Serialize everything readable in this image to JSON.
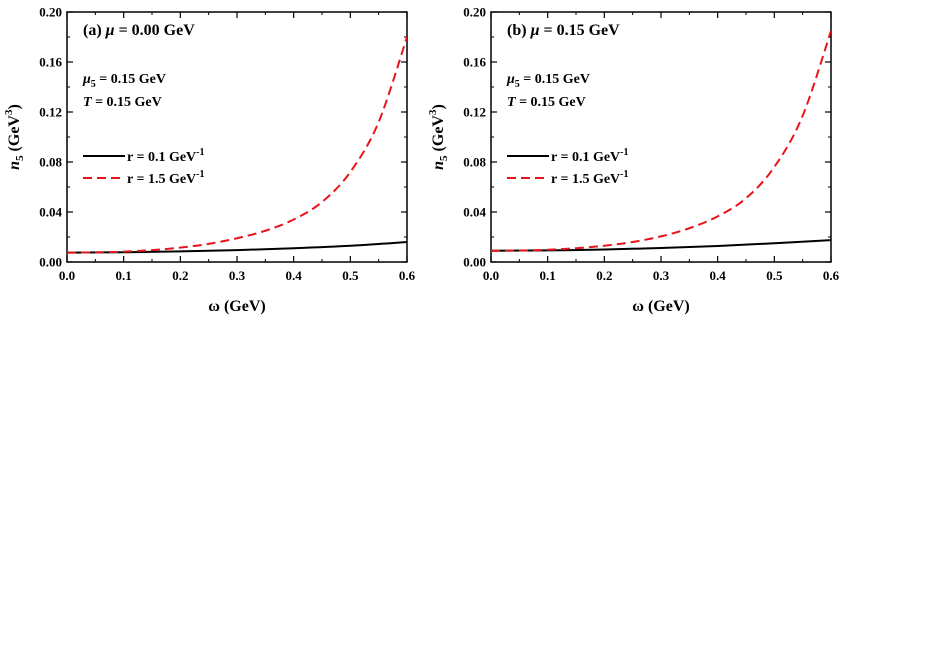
{
  "chart_data": [
    {
      "type": "line",
      "panel": "a",
      "title": "(a) μ = 0.00 GeV",
      "title_prefix": "(a) ",
      "title_mu": "μ",
      "title_value": " = 0.00 GeV",
      "params": [
        {
          "sym": "μ",
          "sub": "5",
          "text": " = 0.15 GeV"
        },
        {
          "sym": "T",
          "sub": "",
          "text": " = 0.15 GeV"
        }
      ],
      "xlabel": "ω  (GeV)",
      "ylabel_sym": "n",
      "ylabel_sub": "5",
      "ylabel_unit": "  (GeV",
      "ylabel_sup": "3",
      "ylabel_close": ")",
      "xlim": [
        0.0,
        0.6
      ],
      "ylim": [
        0.0,
        0.2
      ],
      "xticks": [
        "0.0",
        "0.1",
        "0.2",
        "0.3",
        "0.4",
        "0.5",
        "0.6"
      ],
      "yticks": [
        "0.00",
        "0.04",
        "0.08",
        "0.12",
        "0.16",
        "0.20"
      ],
      "legend_position": "left",
      "series": [
        {
          "name_main": "r = 0.1 GeV",
          "name_sup": "-1",
          "color": "#000000",
          "dash": "solid",
          "x": [
            0.0,
            0.1,
            0.2,
            0.3,
            0.4,
            0.5,
            0.6
          ],
          "y": [
            0.0075,
            0.0078,
            0.0085,
            0.0095,
            0.011,
            0.013,
            0.016
          ]
        },
        {
          "name_main": "r = 1.5 GeV",
          "name_sup": "-1",
          "color": "#e8141b",
          "dash": "dashed",
          "x": [
            0.0,
            0.05,
            0.1,
            0.15,
            0.2,
            0.25,
            0.3,
            0.35,
            0.4,
            0.45,
            0.5,
            0.55,
            0.6
          ],
          "y": [
            0.0075,
            0.0077,
            0.0083,
            0.0095,
            0.0115,
            0.0145,
            0.019,
            0.025,
            0.034,
            0.048,
            0.072,
            0.112,
            0.18
          ]
        }
      ]
    },
    {
      "type": "line",
      "panel": "b",
      "title": "(b) μ = 0.15 GeV",
      "title_prefix": "(b) ",
      "title_mu": "μ",
      "title_value": " = 0.15 GeV",
      "params": [
        {
          "sym": "μ",
          "sub": "5",
          "text": " = 0.15 GeV"
        },
        {
          "sym": "T",
          "sub": "",
          "text": " = 0.15 GeV"
        }
      ],
      "xlabel": "ω  (GeV)",
      "ylabel_sym": "n",
      "ylabel_sub": "5",
      "ylabel_unit": "  (GeV",
      "ylabel_sup": "3",
      "ylabel_close": ")",
      "xlim": [
        0.0,
        0.6
      ],
      "ylim": [
        0.0,
        0.2
      ],
      "xticks": [
        "0.0",
        "0.1",
        "0.2",
        "0.3",
        "0.4",
        "0.5",
        "0.6"
      ],
      "yticks": [
        "0.00",
        "0.04",
        "0.08",
        "0.12",
        "0.16",
        "0.20"
      ],
      "legend_position": "left",
      "series": [
        {
          "name_main": "r = 0.1 GeV",
          "name_sup": "-1",
          "color": "#000000",
          "dash": "solid",
          "x": [
            0.0,
            0.1,
            0.2,
            0.3,
            0.4,
            0.5,
            0.6
          ],
          "y": [
            0.009,
            0.0093,
            0.01,
            0.0112,
            0.0128,
            0.015,
            0.0175
          ]
        },
        {
          "name_main": "r = 1.5 GeV",
          "name_sup": "-1",
          "color": "#e8141b",
          "dash": "dashed",
          "x": [
            0.0,
            0.05,
            0.1,
            0.15,
            0.2,
            0.25,
            0.3,
            0.35,
            0.4,
            0.45,
            0.5,
            0.55,
            0.6
          ],
          "y": [
            0.009,
            0.0092,
            0.0098,
            0.011,
            0.013,
            0.016,
            0.0205,
            0.027,
            0.0365,
            0.051,
            0.076,
            0.117,
            0.185
          ]
        }
      ]
    }
  ]
}
